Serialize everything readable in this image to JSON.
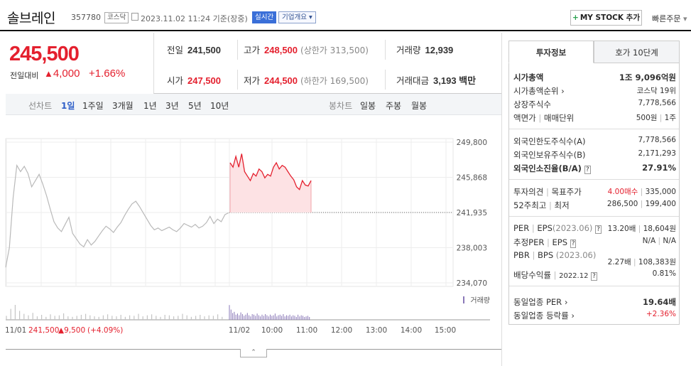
{
  "header": {
    "name": "솔브레인",
    "code": "357780",
    "market": "코스닥",
    "datetime": "2023.11.02 11:24 기준(장중)",
    "realtime": "실시간",
    "corp_info": "기업개요",
    "mystock": "MY STOCK 추가",
    "quick_order": "빠른주문"
  },
  "price": {
    "current": "245,500",
    "change_label": "전일대비",
    "change_value": "4,000",
    "change_pct": "+1.66%"
  },
  "stats": {
    "prev_label": "전일",
    "prev": "241,500",
    "high_label": "고가",
    "high": "248,500",
    "upper_limit": "(상한가 313,500)",
    "volume_label": "거래량",
    "volume": "12,939",
    "open_label": "시가",
    "open": "247,500",
    "low_label": "저가",
    "low": "244,500",
    "lower_limit": "(하한가 169,500)",
    "amount_label": "거래대금",
    "amount": "3,193 백만"
  },
  "periods": {
    "line_label": "선차트",
    "line": [
      "1일",
      "1주일",
      "3개월",
      "1년",
      "3년",
      "5년",
      "10년"
    ],
    "candle_label": "봉차트",
    "candle": [
      "일봉",
      "주봉",
      "월봉"
    ]
  },
  "chart_data": {
    "type": "line",
    "title": "",
    "y_ticks": [
      "249,800",
      "245,868",
      "241,935",
      "238,003",
      "234,070"
    ],
    "ylim": [
      234070,
      249800
    ],
    "baseline": 241935,
    "volume_label": "거래량",
    "x_ticks": [
      "11/02",
      "10:00",
      "11:00",
      "12:00",
      "13:00",
      "14:00",
      "15:00"
    ],
    "prev_day": {
      "label": "11/01",
      "close": "241,500",
      "change": "9,500",
      "change_pct": "(+4.09%)"
    },
    "series": [
      {
        "values": [
          235800,
          238000,
          243600,
          247200,
          246500,
          247100,
          246300,
          244800,
          245500,
          246200,
          245100,
          243800,
          242300,
          240900,
          240200,
          239800,
          240600,
          241400,
          239600,
          239000,
          238400,
          238100,
          238900,
          238300,
          238700,
          239300,
          239900,
          240400,
          240100,
          239700,
          240300,
          240800,
          241600,
          242300,
          242900,
          243200,
          242600,
          241900,
          241200,
          240500,
          240000,
          240200,
          239900,
          240100,
          240300,
          240000,
          239800,
          240200,
          240700,
          240500,
          240300,
          240600,
          240200,
          240400,
          240800,
          241500,
          240700,
          241200,
          240900,
          241700,
          241900
        ]
      },
      {
        "values": [
          247500,
          247000,
          248200,
          247000,
          248500,
          246500,
          246000,
          245500,
          246300,
          246000,
          246800,
          246500,
          245800,
          246200,
          246000,
          247000,
          247500,
          246800,
          247200,
          247000,
          246500,
          246000,
          245600,
          244800,
          244500,
          245500,
          245000,
          244900,
          245500
        ]
      }
    ]
  }
}
